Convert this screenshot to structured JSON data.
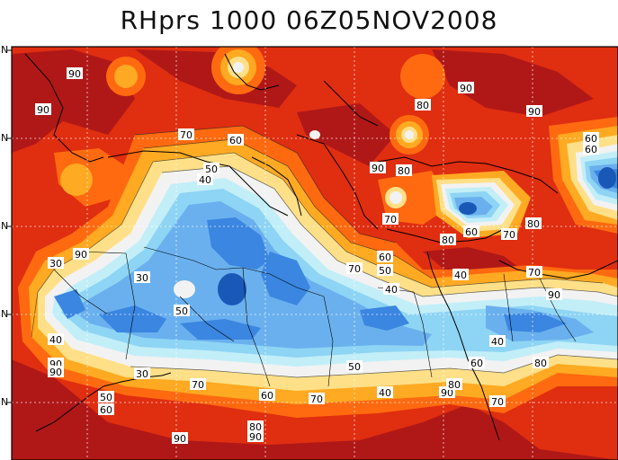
{
  "title": "RHprs 1000 06Z05NOV2008",
  "lat_tick_labels": [
    "N",
    "N",
    "N",
    "N",
    "N"
  ],
  "palette": {
    "r90": "#b01818",
    "r80": "#e02e10",
    "r70": "#ff6a10",
    "r60": "#ffaa22",
    "r50": "#ffe088",
    "r45": "#f2f2f2",
    "b40": "#c2eef8",
    "b35": "#8ed4f4",
    "b30": "#6ab0ee",
    "b25": "#3a86e0",
    "b20": "#1a58b8"
  },
  "contour_labels": [
    {
      "text": "90"
    },
    {
      "text": "90"
    },
    {
      "text": "90"
    },
    {
      "text": "80"
    },
    {
      "text": "90"
    },
    {
      "text": "70"
    },
    {
      "text": "60"
    },
    {
      "text": "50"
    },
    {
      "text": "40"
    },
    {
      "text": "90"
    },
    {
      "text": "80"
    },
    {
      "text": "60"
    },
    {
      "text": "60"
    },
    {
      "text": "70"
    },
    {
      "text": "60"
    },
    {
      "text": "70"
    },
    {
      "text": "80"
    },
    {
      "text": "80"
    },
    {
      "text": "90"
    },
    {
      "text": "30"
    },
    {
      "text": "40"
    },
    {
      "text": "30"
    },
    {
      "text": "70"
    },
    {
      "text": "60"
    },
    {
      "text": "50"
    },
    {
      "text": "40"
    },
    {
      "text": "90"
    },
    {
      "text": "70"
    },
    {
      "text": "50"
    },
    {
      "text": "40"
    },
    {
      "text": "40"
    },
    {
      "text": "90"
    },
    {
      "text": "90"
    },
    {
      "text": "30"
    },
    {
      "text": "50"
    },
    {
      "text": "60"
    },
    {
      "text": "80"
    },
    {
      "text": "50"
    },
    {
      "text": "70"
    },
    {
      "text": "60"
    },
    {
      "text": "40"
    },
    {
      "text": "70"
    },
    {
      "text": "60"
    },
    {
      "text": "90"
    },
    {
      "text": "80"
    },
    {
      "text": "70"
    },
    {
      "text": "80"
    },
    {
      "text": "90"
    },
    {
      "text": "90"
    }
  ]
}
